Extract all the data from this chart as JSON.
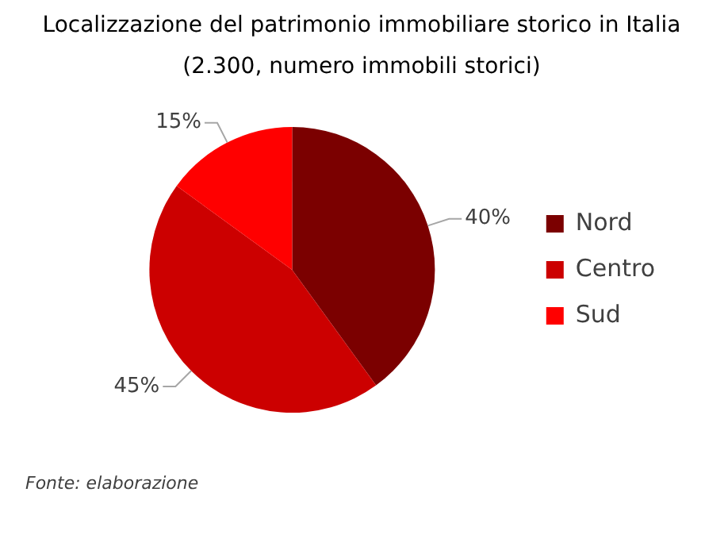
{
  "chart_data": {
    "type": "pie",
    "title": "Localizzazione del patrimonio immobiliare storico in Italia",
    "subtitle": "(2.300, numero immobili storici)",
    "categories": [
      "Nord",
      "Centro",
      "Sud"
    ],
    "values": [
      40,
      45,
      15
    ],
    "colors": [
      "#7b0000",
      "#cc0000",
      "#ff0000"
    ],
    "value_labels": [
      "40%",
      "45%",
      "15%"
    ],
    "legend": "right",
    "annotations": [
      "Fonte: elaborazione"
    ]
  }
}
